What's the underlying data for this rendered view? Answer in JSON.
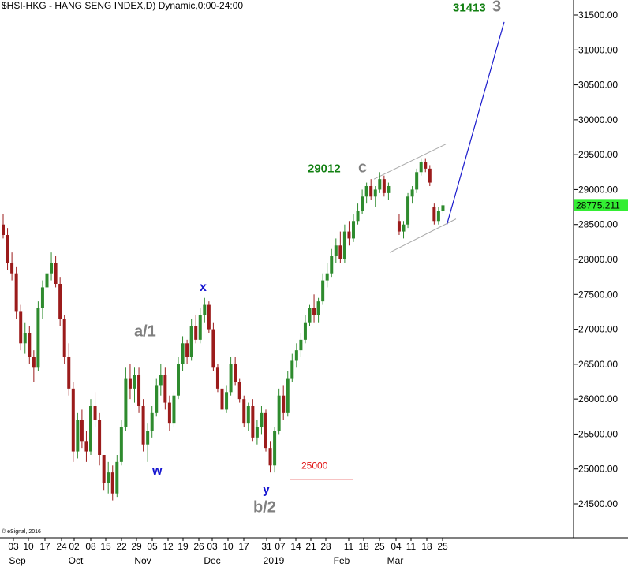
{
  "header": {
    "title": "$HSI-HKG - HANG SENG INDEX,D) Dynamic,0:00-24:00"
  },
  "footer": {
    "copyright": "© eSignal, 2016"
  },
  "colors": {
    "up": "#2e8b2e",
    "down": "#9b1b1b",
    "projection": "#1a1acc",
    "channel": "#aaaaaa",
    "wave_grey": "#808080",
    "wave_blue": "#1515d0",
    "target_green": "#128012",
    "level_red": "#e01010",
    "price_tag": "#33ee33"
  },
  "chart_data": {
    "type": "candlestick",
    "symbol": "$HSI-HKG",
    "ylim": [
      24300,
      31700
    ],
    "y_ticks": [
      24500,
      25000,
      25500,
      26000,
      26500,
      27000,
      27500,
      28000,
      28500,
      29000,
      29500,
      30000,
      30500,
      31000,
      31500
    ],
    "y_tick_labels": [
      "24500.00",
      "25000.00",
      "25500.00",
      "26000.00",
      "26500.00",
      "27000.00",
      "27500.00",
      "28000.00",
      "28500.00",
      "29000.00",
      "29500.00",
      "30000.00",
      "30500.00",
      "31000.00",
      "31500.00"
    ],
    "x_day_labels": [
      "03",
      "10",
      "17",
      "24",
      "02",
      "08",
      "15",
      "22",
      "29",
      "05",
      "12",
      "19",
      "26",
      "03",
      "10",
      "17",
      "31",
      "07",
      "14",
      "21",
      "28",
      "11",
      "18",
      "25",
      "04",
      "11",
      "18",
      "25"
    ],
    "x_month_labels": [
      "Sep",
      "Oct",
      "Nov",
      "Dec",
      "2019",
      "Feb",
      "Mar"
    ],
    "last_price": "28775.211",
    "candles": [
      [
        28500,
        28650,
        28300,
        28350
      ],
      [
        28350,
        28450,
        27850,
        27950
      ],
      [
        27950,
        28100,
        27700,
        27800
      ],
      [
        27800,
        27900,
        27150,
        27250
      ],
      [
        27250,
        27350,
        26700,
        26800
      ],
      [
        26800,
        27100,
        26650,
        26950
      ],
      [
        26950,
        27050,
        26500,
        26600
      ],
      [
        26600,
        26700,
        26250,
        26450
      ],
      [
        26450,
        27400,
        26400,
        27300
      ],
      [
        27300,
        27700,
        27150,
        27600
      ],
      [
        27600,
        27900,
        27400,
        27800
      ],
      [
        27800,
        28100,
        27700,
        27950
      ],
      [
        27950,
        28050,
        27600,
        27650
      ],
      [
        27650,
        27750,
        27050,
        27150
      ],
      [
        27150,
        27200,
        26500,
        26600
      ],
      [
        26600,
        26800,
        26050,
        26150
      ],
      [
        26150,
        26250,
        25100,
        25250
      ],
      [
        25250,
        25800,
        25150,
        25700
      ],
      [
        25700,
        25850,
        25300,
        25400
      ],
      [
        25400,
        25550,
        25100,
        25250
      ],
      [
        25250,
        26000,
        25200,
        25900
      ],
      [
        25900,
        26100,
        25600,
        25700
      ],
      [
        25700,
        25800,
        25050,
        25200
      ],
      [
        25200,
        25150,
        24700,
        24800
      ],
      [
        24800,
        25100,
        24650,
        24950
      ],
      [
        24950,
        25050,
        24550,
        24650
      ],
      [
        24650,
        25200,
        24600,
        25100
      ],
      [
        25100,
        25700,
        25050,
        25600
      ],
      [
        25600,
        26450,
        25550,
        26300
      ],
      [
        26300,
        26500,
        26000,
        26150
      ],
      [
        26150,
        26450,
        25950,
        26350
      ],
      [
        26350,
        26450,
        25800,
        25900
      ],
      [
        25900,
        26000,
        25250,
        25350
      ],
      [
        25350,
        25650,
        25100,
        25550
      ],
      [
        25550,
        25900,
        25450,
        25800
      ],
      [
        25800,
        26300,
        25750,
        26200
      ],
      [
        26200,
        26500,
        26050,
        26350
      ],
      [
        26350,
        26450,
        25850,
        25950
      ],
      [
        25950,
        26050,
        25550,
        25650
      ],
      [
        25650,
        26100,
        25600,
        26050
      ],
      [
        26050,
        26600,
        26000,
        26500
      ],
      [
        26500,
        26900,
        26400,
        26800
      ],
      [
        26800,
        26850,
        26500,
        26600
      ],
      [
        26600,
        27150,
        26550,
        27050
      ],
      [
        27050,
        27200,
        26800,
        26850
      ],
      [
        26850,
        27300,
        26800,
        27200
      ],
      [
        27200,
        27450,
        27100,
        27350
      ],
      [
        27350,
        27400,
        26950,
        27000
      ],
      [
        27000,
        27100,
        26400,
        26450
      ],
      [
        26450,
        26500,
        26100,
        26150
      ],
      [
        26150,
        26250,
        25800,
        25850
      ],
      [
        25850,
        26200,
        25800,
        26100
      ],
      [
        26100,
        26600,
        26050,
        26500
      ],
      [
        26500,
        26600,
        26200,
        26250
      ],
      [
        26250,
        26300,
        25950,
        26000
      ],
      [
        26000,
        26050,
        25600,
        25650
      ],
      [
        25650,
        25950,
        25550,
        25900
      ],
      [
        25900,
        26000,
        25400,
        25450
      ],
      [
        25450,
        25700,
        25350,
        25600
      ],
      [
        25600,
        25900,
        25500,
        25800
      ],
      [
        25800,
        25850,
        25250,
        25300
      ],
      [
        25300,
        25400,
        24950,
        25050
      ],
      [
        25050,
        25600,
        24950,
        25550
      ],
      [
        25550,
        26150,
        25500,
        26050
      ],
      [
        26050,
        26200,
        25700,
        25800
      ],
      [
        25800,
        26400,
        25750,
        26300
      ],
      [
        26300,
        26650,
        26250,
        26550
      ],
      [
        26550,
        26800,
        26450,
        26700
      ],
      [
        26700,
        26950,
        26600,
        26850
      ],
      [
        26850,
        27200,
        26800,
        27100
      ],
      [
        27100,
        27350,
        27050,
        27300
      ],
      [
        27300,
        27500,
        27100,
        27200
      ],
      [
        27200,
        27450,
        27100,
        27400
      ],
      [
        27400,
        27800,
        27350,
        27700
      ],
      [
        27700,
        27950,
        27600,
        27800
      ],
      [
        27800,
        28150,
        27750,
        28050
      ],
      [
        28050,
        28300,
        27950,
        28200
      ],
      [
        28200,
        28400,
        27950,
        28000
      ],
      [
        28000,
        28500,
        27950,
        28400
      ],
      [
        28400,
        28550,
        28200,
        28300
      ],
      [
        28300,
        28650,
        28250,
        28550
      ],
      [
        28550,
        28800,
        28500,
        28700
      ],
      [
        28700,
        29000,
        28650,
        28900
      ],
      [
        28900,
        29100,
        28800,
        29050
      ],
      [
        29050,
        29150,
        28850,
        28900
      ],
      [
        28900,
        29050,
        28750,
        29000
      ],
      [
        29000,
        29250,
        28950,
        29150
      ],
      [
        29150,
        29200,
        28900,
        28950
      ],
      [
        28950,
        29100,
        28850,
        29050
      ],
      [
        28550,
        28650,
        28350,
        28400
      ],
      [
        28400,
        28550,
        28300,
        28500
      ],
      [
        28500,
        28950,
        28450,
        28900
      ],
      [
        28900,
        29050,
        28800,
        29000
      ],
      [
        29000,
        29300,
        28950,
        29250
      ],
      [
        29250,
        29450,
        29200,
        29400
      ],
      [
        29400,
        29450,
        29250,
        29300
      ],
      [
        29300,
        29350,
        29050,
        29100
      ],
      [
        28750,
        28800,
        28500,
        28550
      ],
      [
        28550,
        28750,
        28500,
        28700
      ],
      [
        28700,
        28850,
        28650,
        28775
      ]
    ],
    "annotations": [
      {
        "text": "31413",
        "price": 31550,
        "dx": 0,
        "role": "target"
      },
      {
        "text": "3",
        "price": 31550,
        "dx": 50,
        "role": "wave_grey"
      },
      {
        "text": "29012",
        "price": 29250,
        "dx": 0,
        "role": "target"
      },
      {
        "text": "c",
        "price": 29250,
        "dx": 64,
        "role": "wave_grey"
      },
      {
        "text": "a/1",
        "price": 26900,
        "dx": 0,
        "role": "wave_grey"
      },
      {
        "text": "x",
        "price": 27550,
        "dx": 0,
        "role": "wave_blue"
      },
      {
        "text": "w",
        "price": 24920,
        "dx": 0,
        "role": "wave_blue"
      },
      {
        "text": "y",
        "price": 24650,
        "dx": 0,
        "role": "wave_blue"
      },
      {
        "text": "b/2",
        "price": 24380,
        "dx": 0,
        "role": "wave_grey"
      },
      {
        "text": "25000",
        "price": 25000,
        "dx": 0,
        "role": "level"
      }
    ],
    "projection_line": [
      [
        28500,
        31400
      ]
    ],
    "channel": {
      "upper": [
        29150,
        29650
      ],
      "lower": [
        28100,
        28580
      ]
    }
  }
}
